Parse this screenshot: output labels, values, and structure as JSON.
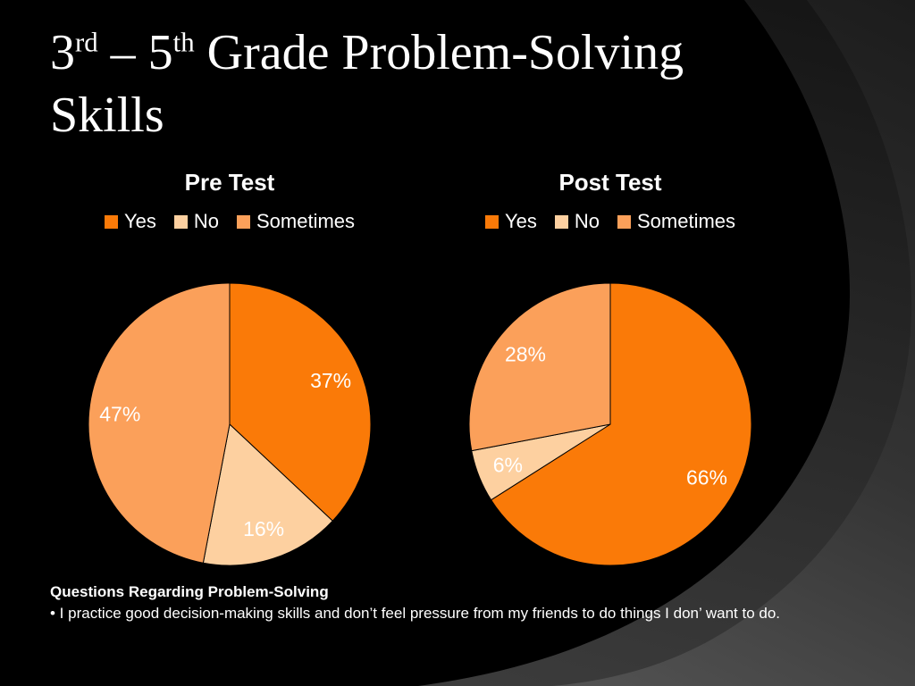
{
  "slide_title": {
    "part1": "3",
    "sup1": "rd",
    "part2": " – 5",
    "sup2": "th",
    "part3": " Grade Problem-Solving",
    "line2": "Skills"
  },
  "chart_data": [
    {
      "type": "pie",
      "title": "Pre Test",
      "labels": [
        "Yes",
        "No",
        "Sometimes"
      ],
      "values": [
        37,
        16,
        47
      ],
      "unit": "%",
      "data_labels": [
        "37%",
        "16%",
        "47%"
      ],
      "slice_colors": [
        "#fa7a08",
        "#fdd0a0",
        "#fba05a"
      ],
      "start_angle_deg": 0,
      "direction": "clockwise",
      "legend_position": "top",
      "label_color": "#ffffff"
    },
    {
      "type": "pie",
      "title": "Post Test",
      "labels": [
        "Yes",
        "No",
        "Sometimes"
      ],
      "values": [
        66,
        6,
        28
      ],
      "unit": "%",
      "data_labels": [
        "66%",
        "6%",
        "28%"
      ],
      "slice_colors": [
        "#fa7a08",
        "#fdd0a0",
        "#fba05a"
      ],
      "start_angle_deg": 0,
      "direction": "clockwise",
      "legend_position": "top",
      "label_color": "#ffffff"
    }
  ],
  "footer": {
    "heading": "Questions Regarding Problem-Solving",
    "bullet": "• I practice good decision-making skills and don’t feel pressure from my friends to do things I don’ want to do."
  },
  "colors": {
    "background": "#000000",
    "swoosh_gray": "#3f3f3f",
    "text": "#ffffff",
    "yes": "#fa7a08",
    "no": "#fdd0a0",
    "sometimes": "#fba05a"
  }
}
